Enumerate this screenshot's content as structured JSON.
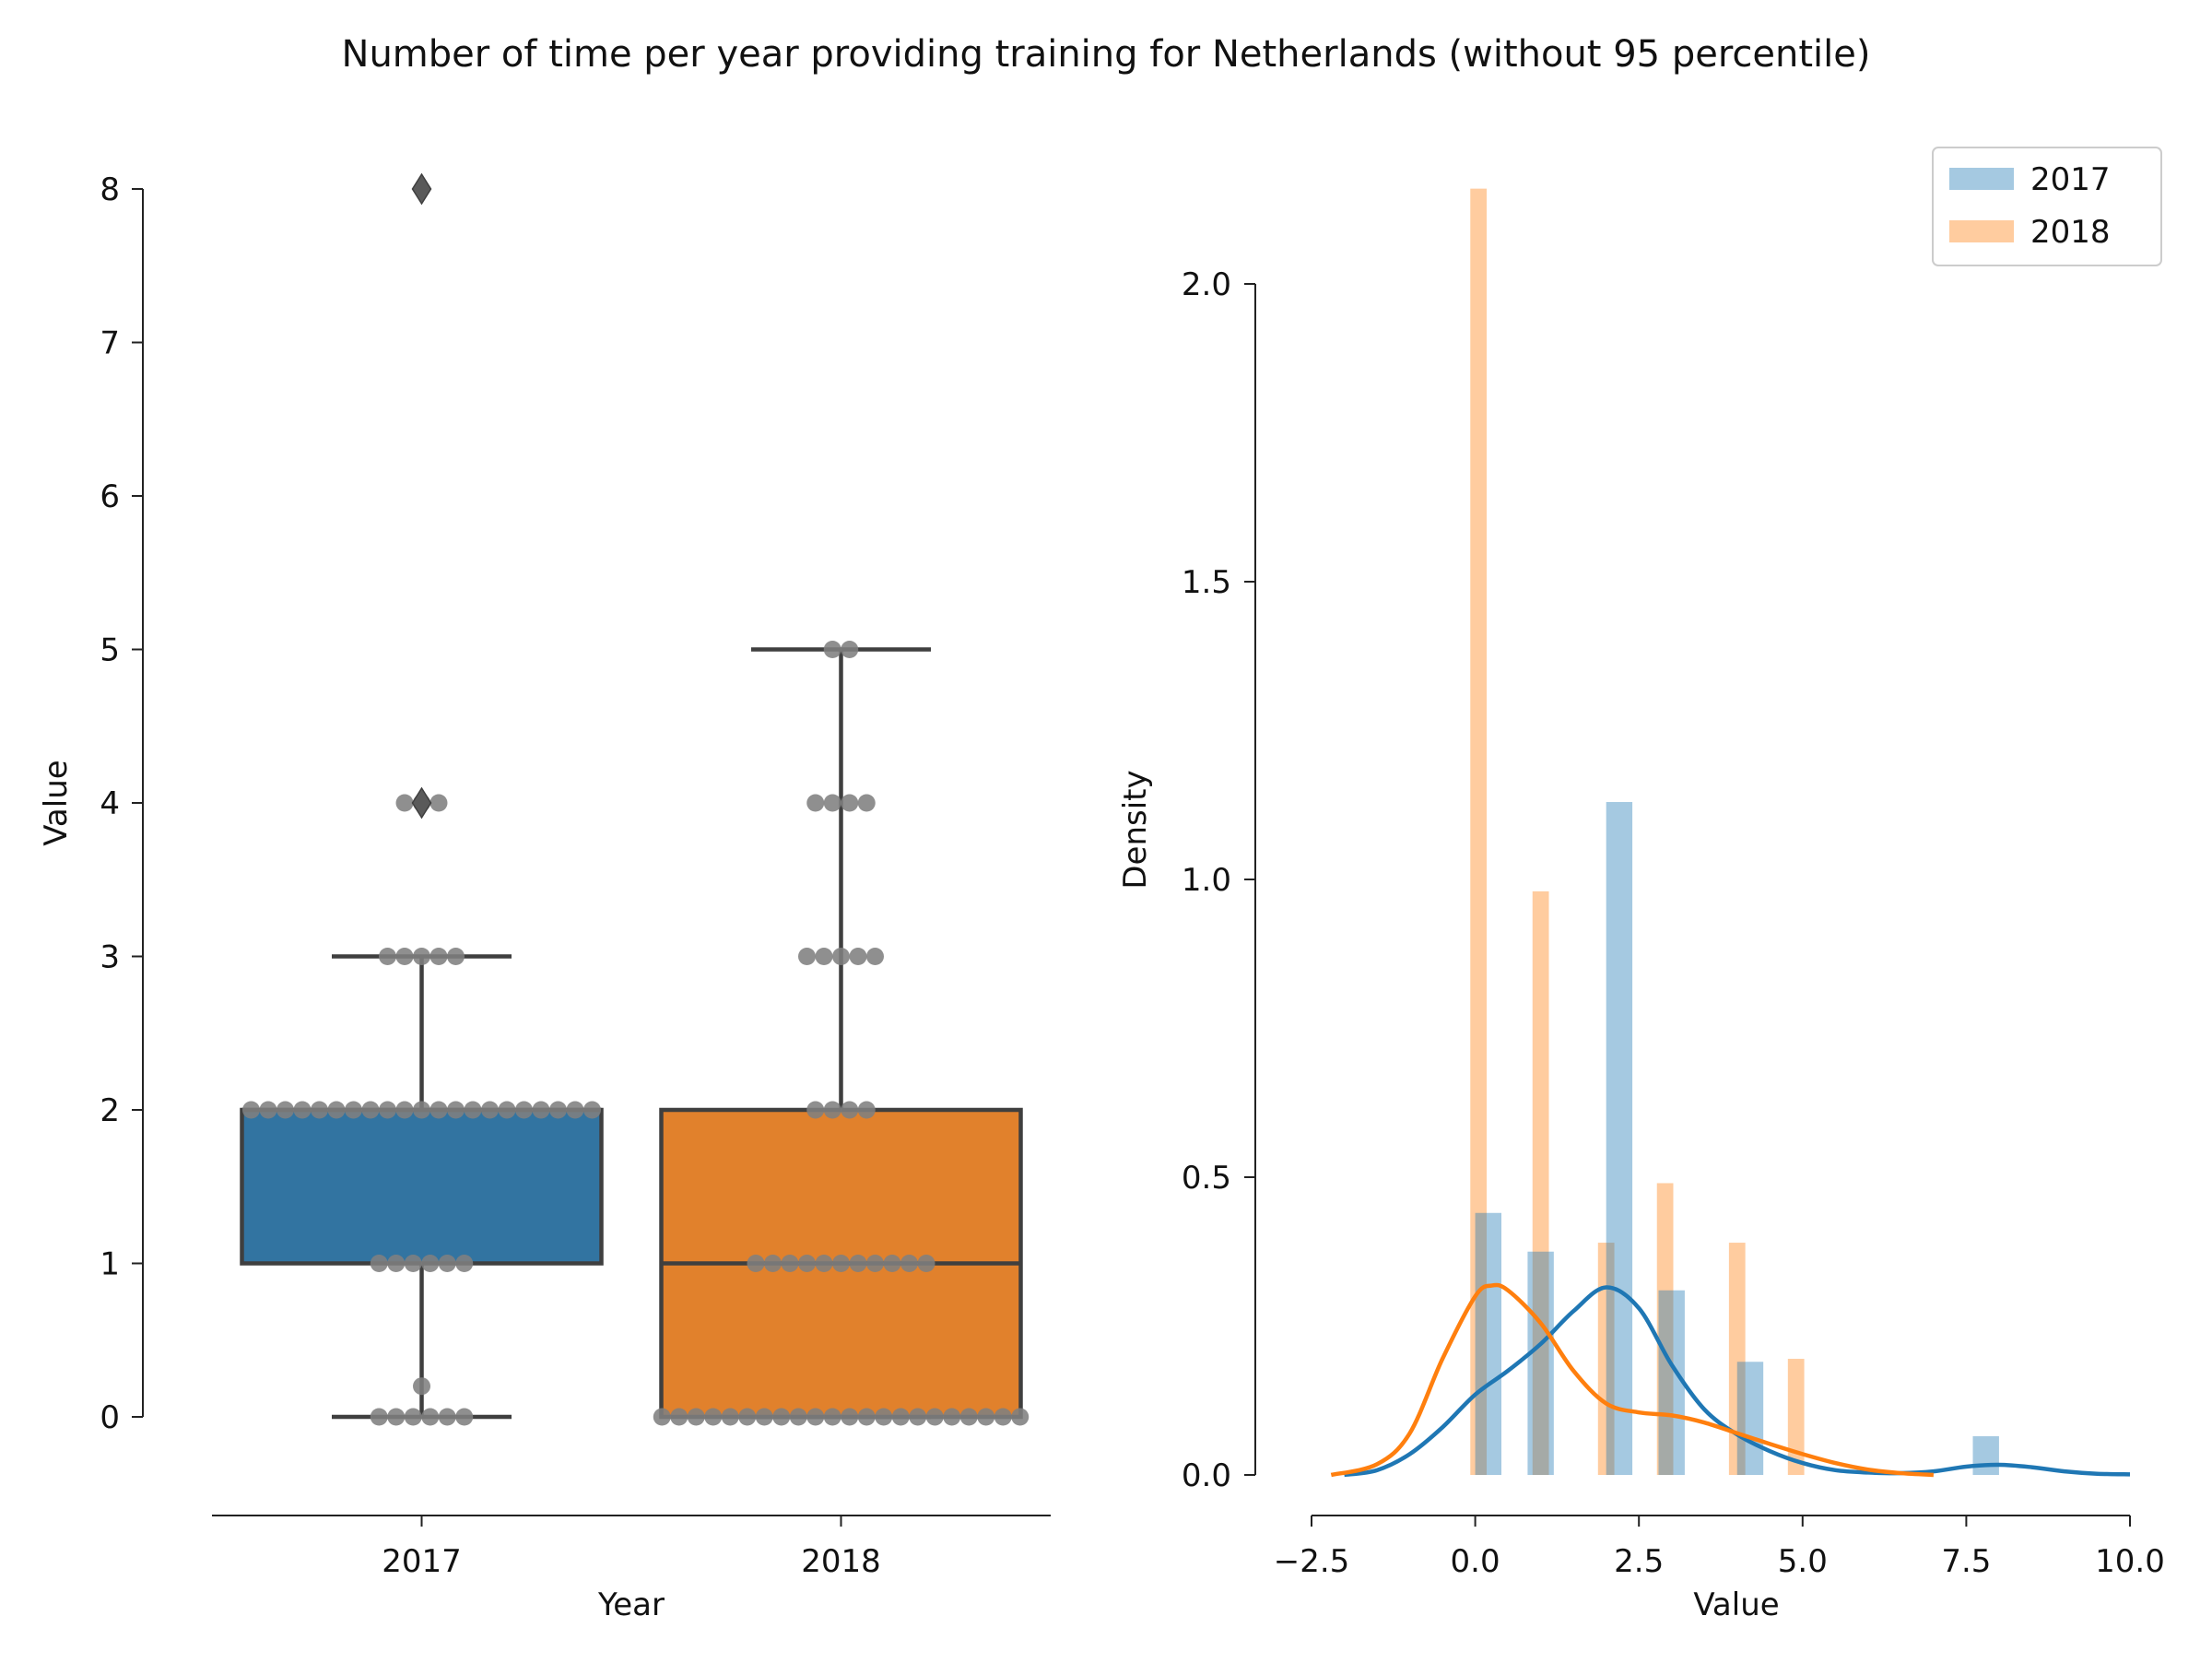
{
  "figure": {
    "title": "Number of time per year providing training for Netherlands (without 95 percentile)"
  },
  "colors": {
    "y2017": "#1f77b4",
    "y2018": "#ff7f0e",
    "box2017": "#3274a1",
    "box2018": "#e1812c",
    "swarm": "#808080",
    "lines": "#3f3f3f"
  },
  "chart_data": [
    {
      "type": "box",
      "xlabel": "Year",
      "ylabel": "Value",
      "ylim": [
        0,
        8
      ],
      "yticks": [
        "0",
        "1",
        "2",
        "3",
        "4",
        "5",
        "6",
        "7",
        "8"
      ],
      "categories": [
        "2017",
        "2018"
      ],
      "boxes": [
        {
          "category": "2017",
          "q1": 1,
          "median": 2,
          "q3": 2,
          "whisker_low": 0,
          "whisker_high": 3,
          "outliers": [
            4,
            8
          ]
        },
        {
          "category": "2018",
          "q1": 0,
          "median": 1,
          "q3": 2,
          "whisker_low": 0,
          "whisker_high": 5,
          "outliers": []
        }
      ],
      "swarm": [
        {
          "category": "2017",
          "points": [
            {
              "value": 0,
              "count": 6
            },
            {
              "value": 0.2,
              "count": 1
            },
            {
              "value": 1,
              "count": 6
            },
            {
              "value": 2,
              "count": 21
            },
            {
              "value": 3,
              "count": 5
            },
            {
              "value": 4,
              "count": 3
            }
          ]
        },
        {
          "category": "2018",
          "points": [
            {
              "value": 0,
              "count": 22
            },
            {
              "value": 1,
              "count": 11
            },
            {
              "value": 2,
              "count": 4
            },
            {
              "value": 3,
              "count": 5
            },
            {
              "value": 4,
              "count": 4
            },
            {
              "value": 5,
              "count": 2
            }
          ]
        }
      ]
    },
    {
      "type": "histogram",
      "xlabel": "Value",
      "ylabel": "Density",
      "xlim": [
        -2.5,
        10.0
      ],
      "ylim": [
        0,
        2.2
      ],
      "xticks": [
        "−2.5",
        "0.0",
        "2.5",
        "5.0",
        "7.5",
        "10.0"
      ],
      "yticks": [
        "0.0",
        "0.5",
        "1.0",
        "1.5",
        "2.0"
      ],
      "legend_position": "top-right",
      "series": [
        {
          "name": "2017",
          "bar_width": 0.4,
          "bars": [
            {
              "x": 0.2,
              "density": 0.44
            },
            {
              "x": 1.0,
              "density": 0.375
            },
            {
              "x": 2.2,
              "density": 1.13
            },
            {
              "x": 3.0,
              "density": 0.31
            },
            {
              "x": 4.2,
              "density": 0.19
            },
            {
              "x": 7.8,
              "density": 0.065
            }
          ],
          "kde": [
            [
              -2.0,
              0.0
            ],
            [
              -1.5,
              0.008
            ],
            [
              -1.0,
              0.035
            ],
            [
              -0.5,
              0.08
            ],
            [
              0.0,
              0.135
            ],
            [
              0.5,
              0.175
            ],
            [
              1.0,
              0.22
            ],
            [
              1.5,
              0.275
            ],
            [
              2.0,
              0.315
            ],
            [
              2.5,
              0.28
            ],
            [
              3.0,
              0.185
            ],
            [
              3.5,
              0.11
            ],
            [
              4.0,
              0.068
            ],
            [
              4.5,
              0.04
            ],
            [
              5.0,
              0.02
            ],
            [
              5.5,
              0.008
            ],
            [
              6.0,
              0.004
            ],
            [
              6.5,
              0.003
            ],
            [
              7.0,
              0.006
            ],
            [
              7.5,
              0.014
            ],
            [
              8.0,
              0.017
            ],
            [
              8.5,
              0.013
            ],
            [
              9.0,
              0.006
            ],
            [
              9.5,
              0.002
            ],
            [
              10.0,
              0.001
            ]
          ]
        },
        {
          "name": "2018",
          "bar_width": 0.25,
          "bars": [
            {
              "x": 0.05,
              "density": 2.16
            },
            {
              "x": 1.0,
              "density": 0.98
            },
            {
              "x": 2.0,
              "density": 0.39
            },
            {
              "x": 2.9,
              "density": 0.49
            },
            {
              "x": 4.0,
              "density": 0.39
            },
            {
              "x": 4.9,
              "density": 0.195
            }
          ],
          "kde": [
            [
              -2.2,
              0.0
            ],
            [
              -1.5,
              0.018
            ],
            [
              -1.0,
              0.07
            ],
            [
              -0.5,
              0.195
            ],
            [
              0.0,
              0.3
            ],
            [
              0.25,
              0.318
            ],
            [
              0.5,
              0.31
            ],
            [
              1.0,
              0.255
            ],
            [
              1.5,
              0.175
            ],
            [
              2.0,
              0.12
            ],
            [
              2.5,
              0.105
            ],
            [
              3.0,
              0.1
            ],
            [
              3.5,
              0.088
            ],
            [
              4.0,
              0.07
            ],
            [
              4.5,
              0.052
            ],
            [
              5.0,
              0.035
            ],
            [
              5.5,
              0.02
            ],
            [
              6.0,
              0.009
            ],
            [
              6.5,
              0.003
            ],
            [
              7.0,
              0.0
            ]
          ]
        }
      ]
    }
  ]
}
